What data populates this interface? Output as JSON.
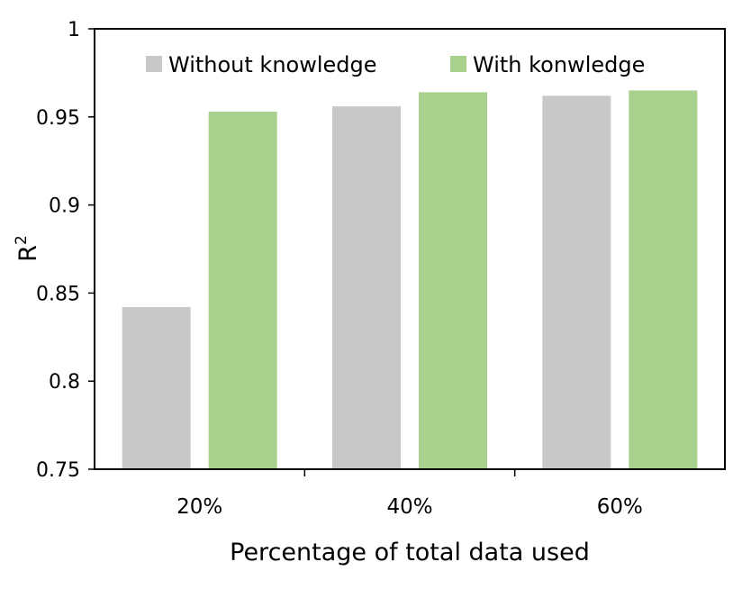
{
  "chart_data": {
    "type": "bar",
    "title": "",
    "xlabel": "Percentage of total data used",
    "ylabel": "R",
    "ylabel_superscript": "2",
    "categories": [
      "20%",
      "40%",
      "60%"
    ],
    "series": [
      {
        "name": "Without knowledge",
        "color": "#c8c8c8",
        "values": [
          0.842,
          0.956,
          0.962
        ]
      },
      {
        "name": "With konwledge",
        "color": "#a9d18e",
        "values": [
          0.953,
          0.964,
          0.965
        ]
      }
    ],
    "ylim": [
      0.75,
      1
    ],
    "yticks": [
      0.75,
      0.8,
      0.85,
      0.9,
      0.95,
      1
    ],
    "ytick_labels": [
      "0.75",
      "0.8",
      "0.85",
      "0.9",
      "0.95",
      "1"
    ],
    "grid": false,
    "legend_position": "top"
  }
}
